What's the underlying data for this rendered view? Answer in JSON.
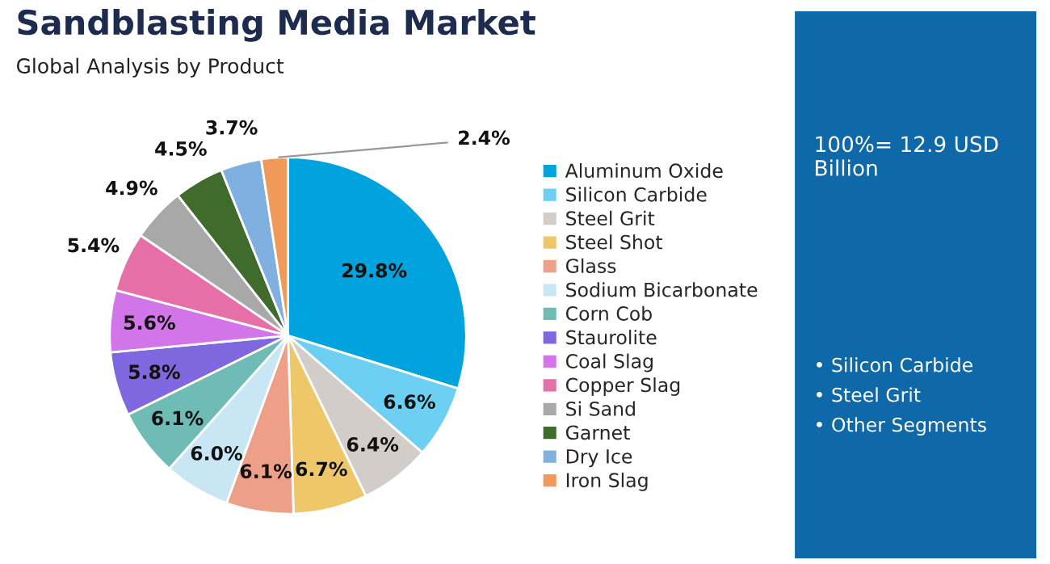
{
  "chart_data": {
    "type": "pie",
    "title": "Sandblasting Media Market",
    "subtitle": "Global Analysis by Product",
    "categories": [
      "Aluminum Oxide",
      "Silicon Carbide",
      "Steel Grit",
      "Steel Shot",
      "Glass",
      "Sodium Bicarbonate",
      "Corn Cob",
      "Staurolite",
      "Coal Slag",
      "Copper Slag",
      "Si Sand",
      "Garnet",
      "Dry Ice",
      "Iron Slag"
    ],
    "values": [
      29.8,
      6.6,
      6.4,
      6.7,
      6.1,
      6.0,
      6.1,
      5.8,
      5.6,
      5.4,
      4.9,
      4.5,
      3.7,
      2.4
    ],
    "colors": [
      "#00a3de",
      "#6dd0f3",
      "#d3cdca",
      "#eec76b",
      "#ee9f88",
      "#c8e6f4",
      "#6fbcb7",
      "#7f67e0",
      "#d275e8",
      "#e56fa6",
      "#a8a8a8",
      "#3f6b2c",
      "#7fb0e0",
      "#f09a5a"
    ],
    "value_labels": [
      "29.8%",
      "6.6%",
      "6.4%",
      "6.7%",
      "6.1%",
      "6.0%",
      "6.1%",
      "5.8%",
      "5.6%",
      "5.4%",
      "4.9%",
      "4.5%",
      "3.7%",
      "2.4%"
    ],
    "legend": "right",
    "annotations": [
      "100%= 12.9 USD Billion",
      "• Silicon Carbide",
      "• Steel Grit",
      "• Other Segments"
    ]
  }
}
